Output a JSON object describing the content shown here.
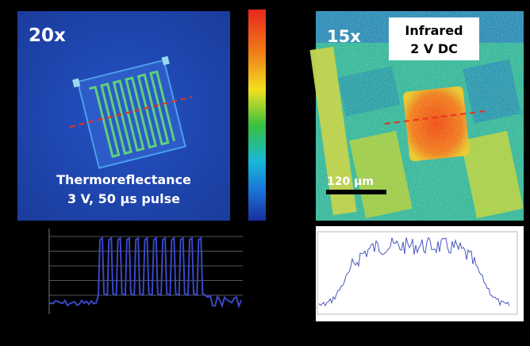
{
  "left_panel": {
    "magnification": "20x",
    "caption_lines": [
      "Thermoreflectance",
      "3 V, 50 µs pulse"
    ]
  },
  "right_panel": {
    "magnification": "15x",
    "label_lines": [
      "Infrared",
      "2 V DC"
    ],
    "scale_bar": "120 µm"
  }
}
